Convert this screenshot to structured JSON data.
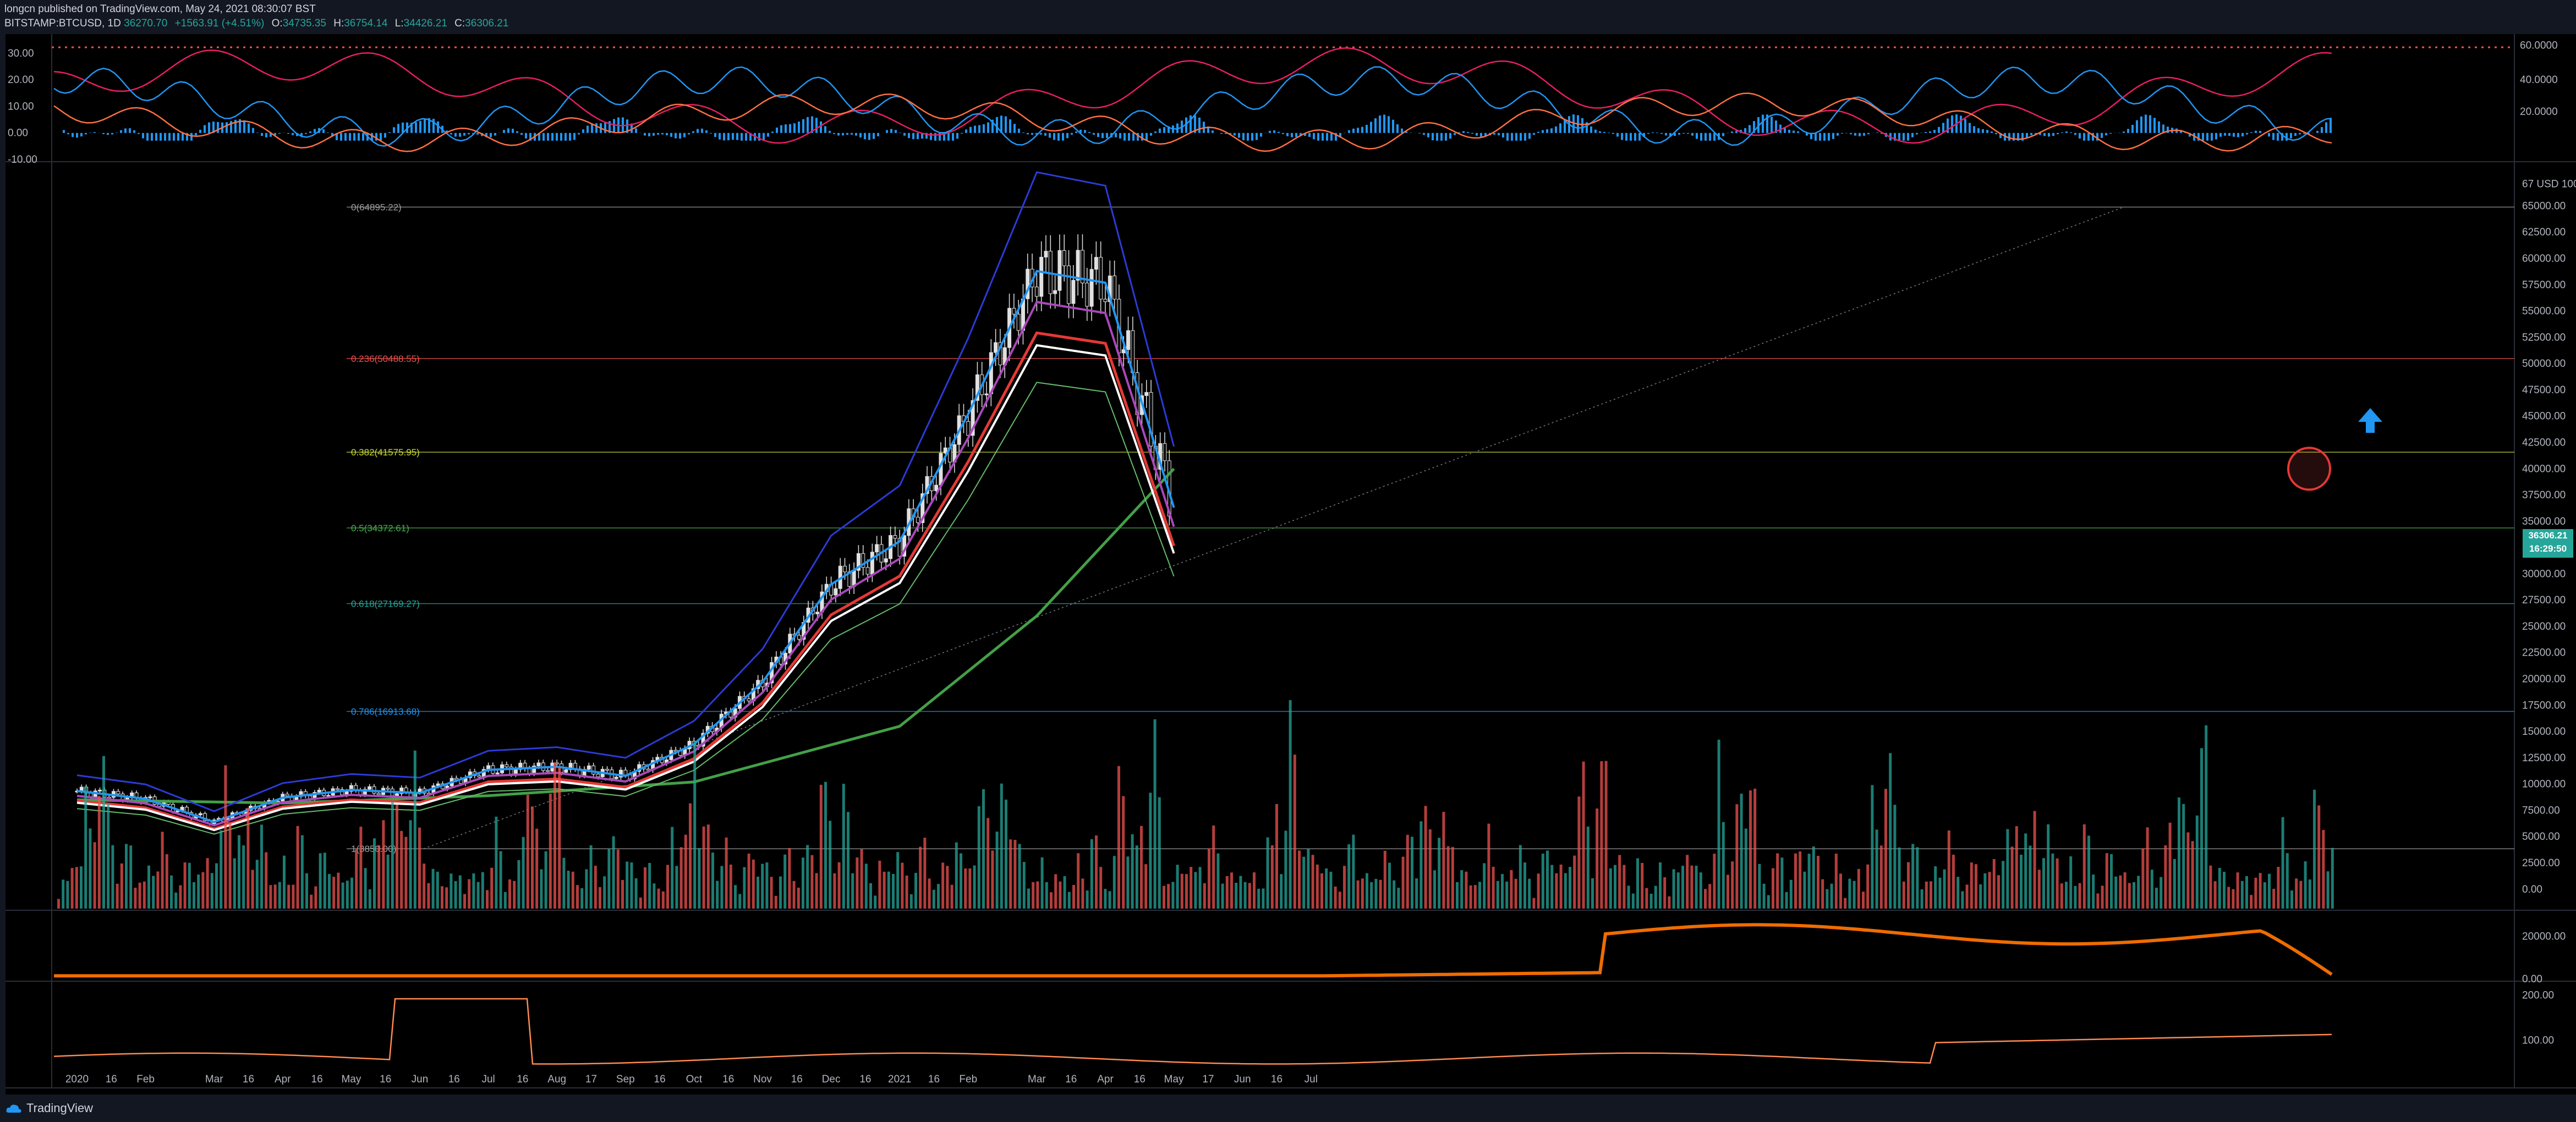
{
  "header": {
    "publisher": "longcn published on TradingView.com, May 24, 2021 08:30:07 BST",
    "symbol": "BITSTAMP:BTCUSD, 1D",
    "last": "36270.70",
    "change": "+1563.91 (+4.51%)",
    "open_label": "O:",
    "open": "34735.35",
    "high_label": "H:",
    "high": "36754.14",
    "low_label": "L:",
    "low": "34426.21",
    "close_label": "C:",
    "close": "36306.21"
  },
  "price_badge": {
    "price": "36306.21",
    "countdown": "16:29:50"
  },
  "footer": {
    "brand": "TradingView"
  },
  "colors": {
    "background": "#000000",
    "up": "#26a69a",
    "down": "#ef5350",
    "bb_upper": "#2c3bd8",
    "ma_red": "#e53935",
    "ma_green": "#43a047",
    "ema_blue": "#2196f3",
    "fib_red": "#ef5350",
    "fib_yellow": "#cddc39",
    "fib_green": "#4caf50",
    "fib_teal": "#26a69a",
    "fib_blue": "#2196f3",
    "fib_gray": "#9e9e9e"
  },
  "chart_data": [
    {
      "type": "line",
      "panel": "oscillator",
      "y_ticks_left": [
        "30.00",
        "20.00",
        "10.00",
        "0.00",
        "-10.00"
      ],
      "y_ticks_right": [
        "60.0000",
        "40.0000",
        "20.0000"
      ],
      "ylim": [
        -10,
        36
      ]
    },
    {
      "type": "candlestick",
      "panel": "price",
      "y_ticks": [
        "67 USD 100",
        "65000.00",
        "62500.00",
        "60000.00",
        "57500.00",
        "55000.00",
        "52500.00",
        "50000.00",
        "47500.00",
        "45000.00",
        "42500.00",
        "40000.00",
        "37500.00",
        "35000.00",
        "32500.00",
        "30000.00",
        "27500.00",
        "25000.00",
        "22500.00",
        "20000.00",
        "17500.00",
        "15000.00",
        "12500.00",
        "10000.00",
        "7500.00",
        "5000.00",
        "2500.00",
        "0.00"
      ],
      "ylim": [
        -2000,
        69000
      ],
      "fib_levels": [
        {
          "label": "0(64895.22)",
          "value": 64895.22,
          "color": "#9e9e9e"
        },
        {
          "label": "0.236(50488.55)",
          "value": 50488.55,
          "color": "#ef5350"
        },
        {
          "label": "0.382(41575.95)",
          "value": 41575.95,
          "color": "#cddc39"
        },
        {
          "label": "0.5(34372.61)",
          "value": 34372.61,
          "color": "#4caf50"
        },
        {
          "label": "0.618(27169.27)",
          "value": 27169.27,
          "color": "#26a69a"
        },
        {
          "label": "0.786(16913.68)",
          "value": 16913.68,
          "color": "#2196f3"
        },
        {
          "label": "1(3850.00)",
          "value": 3850.0,
          "color": "#9e9e9e"
        }
      ],
      "monthly_close": [
        {
          "x": "2020-01",
          "y": 9350
        },
        {
          "x": "2020-02",
          "y": 8600
        },
        {
          "x": "2020-03",
          "y": 6400
        },
        {
          "x": "2020-04",
          "y": 8700
        },
        {
          "x": "2020-05",
          "y": 9450
        },
        {
          "x": "2020-06",
          "y": 9150
        },
        {
          "x": "2020-07",
          "y": 11350
        },
        {
          "x": "2020-08",
          "y": 11650
        },
        {
          "x": "2020-09",
          "y": 10780
        },
        {
          "x": "2020-10",
          "y": 13800
        },
        {
          "x": "2020-11",
          "y": 19700
        },
        {
          "x": "2020-12",
          "y": 29000
        },
        {
          "x": "2021-01",
          "y": 33100
        },
        {
          "x": "2021-02",
          "y": 45200
        },
        {
          "x": "2021-03",
          "y": 58800
        },
        {
          "x": "2021-04",
          "y": 57700
        },
        {
          "x": "2021-05",
          "y": 36306
        }
      ],
      "ma_200": [
        {
          "x": "2020-01",
          "y": 8500
        },
        {
          "x": "2020-04",
          "y": 8200
        },
        {
          "x": "2020-07",
          "y": 8900
        },
        {
          "x": "2020-10",
          "y": 10200
        },
        {
          "x": "2021-01",
          "y": 15500
        },
        {
          "x": "2021-03",
          "y": 26000
        },
        {
          "x": "2021-05",
          "y": 40000
        }
      ]
    },
    {
      "type": "bar",
      "panel": "volume",
      "note_values": "relative volume estimate",
      "values": [
        0.3,
        0.4,
        0.3,
        0.5,
        0.4,
        0.3,
        0.6,
        0.4,
        0.5,
        1.0,
        0.8,
        0.5,
        0.4,
        0.3,
        0.6,
        0.7,
        0.8,
        0.5,
        0.4,
        0.3,
        0.5,
        0.6,
        0.7,
        0.9,
        0.6,
        0.5,
        0.4,
        0.3,
        0.5,
        0.6,
        0.7,
        0.5,
        0.4,
        0.6,
        0.7,
        0.8,
        0.9,
        0.7,
        0.6,
        0.5,
        0.4,
        0.3,
        0.6,
        0.5
      ]
    },
    {
      "type": "area",
      "panel": "indicator_1",
      "y_ticks": [
        "20000.00",
        "0.00"
      ],
      "ylim": [
        0,
        30000
      ]
    },
    {
      "type": "line",
      "panel": "indicator_2",
      "y_ticks": [
        "200.00",
        "100.00"
      ],
      "ylim": [
        0,
        220
      ]
    }
  ],
  "x_axis": {
    "labels": [
      "2020",
      "16",
      "Feb",
      "Mar",
      "16",
      "Apr",
      "16",
      "May",
      "16",
      "Jun",
      "16",
      "Jul",
      "16",
      "Aug",
      "17",
      "Sep",
      "16",
      "Oct",
      "16",
      "Nov",
      "16",
      "Dec",
      "16",
      "2021",
      "16",
      "Feb",
      "Mar",
      "16",
      "Apr",
      "16",
      "May",
      "17",
      "Jun",
      "16",
      "Jul"
    ]
  }
}
